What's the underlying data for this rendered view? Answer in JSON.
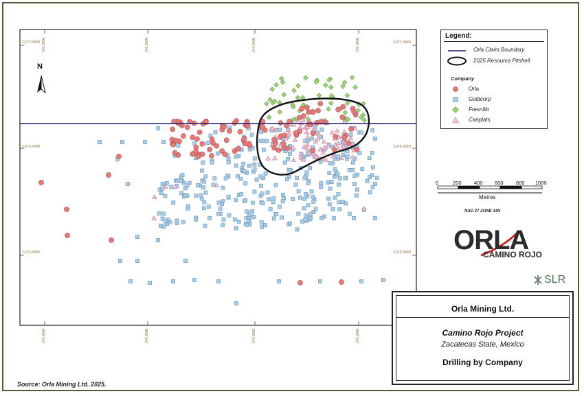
{
  "coords": {
    "eastings": [
      "242,000E",
      "243,000E",
      "244,000E",
      "245,000E"
    ],
    "northings": [
      "2,677,000N",
      "2,676,000N",
      "2,675,000N"
    ]
  },
  "north_label": "N",
  "legend": {
    "title": "Legend:",
    "claim_label": "Orla Claim Boundary",
    "pitshell_label": "2025 Resource Pitshell",
    "company_heading": "Company",
    "companies": [
      {
        "name": "Orla",
        "symbol": "circle",
        "color": "#e07b7b"
      },
      {
        "name": "Goldcorp",
        "symbol": "square",
        "color": "#a9cde6"
      },
      {
        "name": "Fresnillo",
        "symbol": "diamond",
        "color": "#9fd17f"
      },
      {
        "name": "Canplats",
        "symbol": "triangle",
        "color": "#f2c4d8"
      }
    ]
  },
  "scale": {
    "ticks": [
      "0",
      "200",
      "400",
      "600",
      "800",
      "1000"
    ],
    "units": "Metres",
    "datum": "NAD 27 ZONE 14N"
  },
  "logo": {
    "main": "ORLA",
    "sub": "CAMINO ROJO"
  },
  "consultant": "SLR",
  "title_block": {
    "company": "Orla Mining Ltd.",
    "project": "Camino Rojo Project",
    "location": "Zacatecas State, Mexico",
    "figure_title": "Drilling by Company"
  },
  "source": "Source:  Orla Mining Ltd. 2025."
}
